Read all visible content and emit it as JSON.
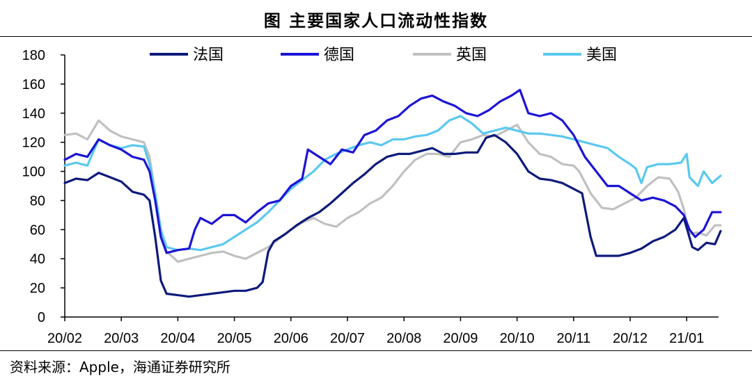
{
  "title": "图  主要国家人口流动性指数",
  "source": "资料来源：Apple，海通证券研究所",
  "chart_data": {
    "type": "line",
    "title": "图  主要国家人口流动性指数",
    "xlabel": "",
    "ylabel": "",
    "ylim": [
      0,
      180
    ],
    "yticks": [
      0,
      20,
      40,
      60,
      80,
      100,
      120,
      140,
      160,
      180
    ],
    "xticks": [
      "20/02",
      "20/03",
      "20/04",
      "20/05",
      "20/06",
      "20/07",
      "20/08",
      "20/09",
      "20/10",
      "20/11",
      "20/12",
      "21/01"
    ],
    "x_domain": [
      0,
      11.6
    ],
    "grid": false,
    "legend_position": "top",
    "series": [
      {
        "name": "法国",
        "color": "#0d1a7a",
        "points": [
          [
            0,
            92
          ],
          [
            0.2,
            95
          ],
          [
            0.4,
            94
          ],
          [
            0.6,
            99
          ],
          [
            0.8,
            96
          ],
          [
            1.0,
            93
          ],
          [
            1.2,
            86
          ],
          [
            1.4,
            84
          ],
          [
            1.5,
            80
          ],
          [
            1.6,
            55
          ],
          [
            1.7,
            25
          ],
          [
            1.8,
            16
          ],
          [
            2.0,
            15
          ],
          [
            2.2,
            14
          ],
          [
            2.4,
            15
          ],
          [
            2.6,
            16
          ],
          [
            2.8,
            17
          ],
          [
            3.0,
            18
          ],
          [
            3.2,
            18
          ],
          [
            3.4,
            20
          ],
          [
            3.5,
            24
          ],
          [
            3.6,
            45
          ],
          [
            3.7,
            52
          ],
          [
            3.9,
            57
          ],
          [
            4.1,
            63
          ],
          [
            4.3,
            68
          ],
          [
            4.5,
            72
          ],
          [
            4.7,
            78
          ],
          [
            4.9,
            85
          ],
          [
            5.1,
            92
          ],
          [
            5.3,
            98
          ],
          [
            5.5,
            105
          ],
          [
            5.7,
            110
          ],
          [
            5.9,
            112
          ],
          [
            6.1,
            112
          ],
          [
            6.3,
            114
          ],
          [
            6.5,
            116
          ],
          [
            6.7,
            112
          ],
          [
            6.9,
            112
          ],
          [
            7.1,
            113
          ],
          [
            7.3,
            113
          ],
          [
            7.45,
            123
          ],
          [
            7.6,
            125
          ],
          [
            7.8,
            120
          ],
          [
            8.0,
            112
          ],
          [
            8.2,
            100
          ],
          [
            8.4,
            95
          ],
          [
            8.6,
            94
          ],
          [
            8.8,
            92
          ],
          [
            9.0,
            88
          ],
          [
            9.15,
            85
          ],
          [
            9.3,
            55
          ],
          [
            9.4,
            42
          ],
          [
            9.6,
            42
          ],
          [
            9.8,
            42
          ],
          [
            10.0,
            44
          ],
          [
            10.2,
            47
          ],
          [
            10.4,
            52
          ],
          [
            10.6,
            55
          ],
          [
            10.8,
            60
          ],
          [
            10.95,
            68
          ],
          [
            11.1,
            48
          ],
          [
            11.2,
            46
          ],
          [
            11.35,
            51
          ],
          [
            11.5,
            50
          ],
          [
            11.6,
            59
          ]
        ]
      },
      {
        "name": "德国",
        "color": "#1c13d6",
        "points": [
          [
            0,
            108
          ],
          [
            0.2,
            112
          ],
          [
            0.4,
            110
          ],
          [
            0.6,
            122
          ],
          [
            0.8,
            118
          ],
          [
            1.0,
            115
          ],
          [
            1.2,
            110
          ],
          [
            1.4,
            108
          ],
          [
            1.5,
            100
          ],
          [
            1.6,
            80
          ],
          [
            1.7,
            55
          ],
          [
            1.8,
            44
          ],
          [
            2.0,
            46
          ],
          [
            2.2,
            47
          ],
          [
            2.3,
            60
          ],
          [
            2.4,
            68
          ],
          [
            2.6,
            64
          ],
          [
            2.8,
            70
          ],
          [
            3.0,
            70
          ],
          [
            3.2,
            65
          ],
          [
            3.4,
            72
          ],
          [
            3.6,
            78
          ],
          [
            3.8,
            80
          ],
          [
            4.0,
            90
          ],
          [
            4.2,
            95
          ],
          [
            4.3,
            115
          ],
          [
            4.5,
            110
          ],
          [
            4.7,
            105
          ],
          [
            4.9,
            115
          ],
          [
            5.1,
            113
          ],
          [
            5.3,
            125
          ],
          [
            5.5,
            128
          ],
          [
            5.7,
            135
          ],
          [
            5.9,
            138
          ],
          [
            6.1,
            145
          ],
          [
            6.3,
            150
          ],
          [
            6.5,
            152
          ],
          [
            6.7,
            148
          ],
          [
            6.9,
            145
          ],
          [
            7.1,
            140
          ],
          [
            7.3,
            138
          ],
          [
            7.5,
            142
          ],
          [
            7.7,
            148
          ],
          [
            7.9,
            152
          ],
          [
            8.05,
            156
          ],
          [
            8.2,
            140
          ],
          [
            8.4,
            138
          ],
          [
            8.6,
            140
          ],
          [
            8.8,
            135
          ],
          [
            9.0,
            125
          ],
          [
            9.2,
            110
          ],
          [
            9.4,
            100
          ],
          [
            9.6,
            90
          ],
          [
            9.8,
            90
          ],
          [
            10.0,
            85
          ],
          [
            10.2,
            80
          ],
          [
            10.4,
            82
          ],
          [
            10.6,
            80
          ],
          [
            10.8,
            76
          ],
          [
            10.95,
            70
          ],
          [
            11.05,
            60
          ],
          [
            11.15,
            55
          ],
          [
            11.3,
            60
          ],
          [
            11.45,
            72
          ],
          [
            11.6,
            72
          ]
        ]
      },
      {
        "name": "英国",
        "color": "#c0c0c0",
        "points": [
          [
            0,
            125
          ],
          [
            0.2,
            126
          ],
          [
            0.4,
            122
          ],
          [
            0.6,
            135
          ],
          [
            0.8,
            128
          ],
          [
            1.0,
            124
          ],
          [
            1.2,
            122
          ],
          [
            1.4,
            120
          ],
          [
            1.5,
            110
          ],
          [
            1.6,
            85
          ],
          [
            1.7,
            60
          ],
          [
            1.8,
            45
          ],
          [
            2.0,
            38
          ],
          [
            2.2,
            40
          ],
          [
            2.4,
            42
          ],
          [
            2.6,
            44
          ],
          [
            2.8,
            45
          ],
          [
            3.0,
            42
          ],
          [
            3.2,
            40
          ],
          [
            3.4,
            44
          ],
          [
            3.6,
            48
          ],
          [
            3.8,
            54
          ],
          [
            4.0,
            60
          ],
          [
            4.2,
            65
          ],
          [
            4.4,
            68
          ],
          [
            4.6,
            64
          ],
          [
            4.8,
            62
          ],
          [
            5.0,
            68
          ],
          [
            5.2,
            72
          ],
          [
            5.4,
            78
          ],
          [
            5.6,
            82
          ],
          [
            5.8,
            90
          ],
          [
            6.0,
            100
          ],
          [
            6.2,
            108
          ],
          [
            6.4,
            112
          ],
          [
            6.6,
            112
          ],
          [
            6.8,
            110
          ],
          [
            7.0,
            120
          ],
          [
            7.2,
            122
          ],
          [
            7.4,
            125
          ],
          [
            7.6,
            124
          ],
          [
            7.8,
            128
          ],
          [
            8.0,
            132
          ],
          [
            8.2,
            120
          ],
          [
            8.4,
            112
          ],
          [
            8.6,
            110
          ],
          [
            8.8,
            105
          ],
          [
            9.0,
            104
          ],
          [
            9.1,
            100
          ],
          [
            9.3,
            85
          ],
          [
            9.5,
            75
          ],
          [
            9.7,
            74
          ],
          [
            9.9,
            78
          ],
          [
            10.1,
            82
          ],
          [
            10.3,
            90
          ],
          [
            10.5,
            96
          ],
          [
            10.7,
            95
          ],
          [
            10.85,
            86
          ],
          [
            10.95,
            74
          ],
          [
            11.05,
            57
          ],
          [
            11.2,
            58
          ],
          [
            11.35,
            56
          ],
          [
            11.5,
            63
          ],
          [
            11.6,
            63
          ]
        ]
      },
      {
        "name": "美国",
        "color": "#5ac8f0",
        "points": [
          [
            0,
            104
          ],
          [
            0.2,
            106
          ],
          [
            0.4,
            104
          ],
          [
            0.6,
            122
          ],
          [
            0.8,
            118
          ],
          [
            1.0,
            116
          ],
          [
            1.2,
            118
          ],
          [
            1.4,
            117
          ],
          [
            1.5,
            105
          ],
          [
            1.6,
            85
          ],
          [
            1.7,
            60
          ],
          [
            1.8,
            48
          ],
          [
            2.0,
            46
          ],
          [
            2.2,
            47
          ],
          [
            2.4,
            46
          ],
          [
            2.6,
            48
          ],
          [
            2.8,
            50
          ],
          [
            3.0,
            55
          ],
          [
            3.2,
            60
          ],
          [
            3.4,
            65
          ],
          [
            3.6,
            72
          ],
          [
            3.8,
            80
          ],
          [
            4.0,
            88
          ],
          [
            4.2,
            94
          ],
          [
            4.4,
            100
          ],
          [
            4.6,
            108
          ],
          [
            4.8,
            112
          ],
          [
            5.0,
            115
          ],
          [
            5.2,
            118
          ],
          [
            5.4,
            120
          ],
          [
            5.6,
            118
          ],
          [
            5.8,
            122
          ],
          [
            6.0,
            122
          ],
          [
            6.2,
            124
          ],
          [
            6.4,
            125
          ],
          [
            6.6,
            128
          ],
          [
            6.8,
            135
          ],
          [
            7.0,
            138
          ],
          [
            7.2,
            133
          ],
          [
            7.4,
            126
          ],
          [
            7.6,
            128
          ],
          [
            7.8,
            130
          ],
          [
            8.0,
            128
          ],
          [
            8.2,
            126
          ],
          [
            8.4,
            126
          ],
          [
            8.6,
            125
          ],
          [
            8.8,
            124
          ],
          [
            9.0,
            122
          ],
          [
            9.2,
            120
          ],
          [
            9.4,
            118
          ],
          [
            9.6,
            116
          ],
          [
            9.8,
            110
          ],
          [
            10.0,
            105
          ],
          [
            10.1,
            102
          ],
          [
            10.2,
            92
          ],
          [
            10.3,
            103
          ],
          [
            10.5,
            105
          ],
          [
            10.7,
            105
          ],
          [
            10.9,
            106
          ],
          [
            11.0,
            112
          ],
          [
            11.05,
            96
          ],
          [
            11.2,
            90
          ],
          [
            11.3,
            100
          ],
          [
            11.45,
            92
          ],
          [
            11.6,
            97
          ]
        ]
      }
    ]
  }
}
